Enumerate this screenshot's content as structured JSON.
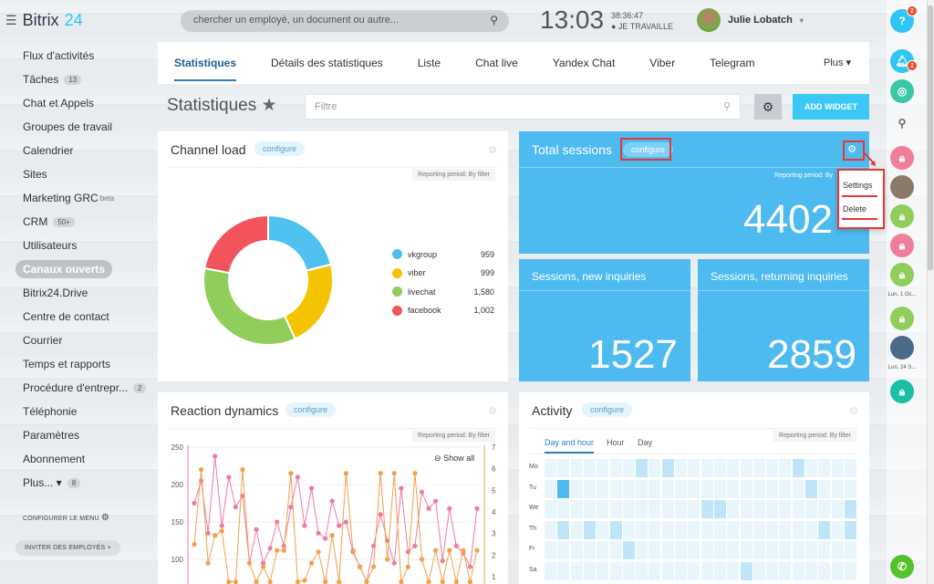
{
  "app": {
    "name": "Bitrix",
    "version": "24"
  },
  "search": {
    "placeholder": "chercher un employé, un document ou autre..."
  },
  "clock": {
    "time": "13:03",
    "seconds": "38:36:47",
    "status": "● JE TRAVAILLE"
  },
  "user": {
    "name": "Julie Lobatch"
  },
  "menu": {
    "items": [
      {
        "label": "Flux d'activités"
      },
      {
        "label": "Tâches",
        "count": "13"
      },
      {
        "label": "Chat et Appels"
      },
      {
        "label": "Groupes de travail"
      },
      {
        "label": "Calendrier"
      },
      {
        "label": "Sites"
      },
      {
        "label": "Marketing GRC",
        "sup": "beta"
      },
      {
        "label": "CRM",
        "count": "50+"
      },
      {
        "label": "Utilisateurs"
      },
      {
        "label": "Canaux ouverts",
        "active": true
      },
      {
        "label": "Bitrix24.Drive"
      },
      {
        "label": "Centre de contact"
      },
      {
        "label": "Courrier"
      },
      {
        "label": "Temps et rapports"
      },
      {
        "label": "Procédure d'entrepr...",
        "count": "2"
      },
      {
        "label": "Téléphonie"
      },
      {
        "label": "Paramètres"
      },
      {
        "label": "Abonnement"
      },
      {
        "label": "Plus... ▾",
        "count": "8"
      }
    ],
    "configure": "CONFIGURER LE MENU",
    "invite": "INVITER DES EMPLOYÉS"
  },
  "tabs": [
    "Statistiques",
    "Détails des statistiques",
    "Liste",
    "Chat live",
    "Yandex Chat",
    "Viber",
    "Telegram"
  ],
  "tabs_more": "Plus ▾",
  "page": {
    "title": "Statistiques",
    "star": "★",
    "filter_placeholder": "Filtre",
    "add_widget": "ADD WIDGET"
  },
  "widgets": {
    "channel_load": {
      "title": "Channel load",
      "configure": "configure",
      "period": "Reporting period: By filter"
    },
    "total_sessions": {
      "title": "Total sessions",
      "configure": "configure",
      "period": "Reporting period: By",
      "value": "4402"
    },
    "new_inquiries": {
      "title": "Sessions, new inquiries",
      "value": "1527"
    },
    "returning": {
      "title": "Sessions, returning inquiries",
      "value": "2859"
    },
    "reaction": {
      "title": "Reaction dynamics",
      "configure": "configure",
      "period": "Reporting period: By filter",
      "show_all": "Show all"
    },
    "activity": {
      "title": "Activity",
      "configure": "configure",
      "period": "Reporting period: By filter",
      "subtabs": [
        "Day and hour",
        "Hour",
        "Day"
      ],
      "days": [
        "Mo",
        "Tu",
        "We",
        "Th",
        "Fr",
        "Sa"
      ]
    }
  },
  "dropdown": {
    "settings": "Settings",
    "delete": "Delete"
  },
  "rightbar": {
    "help_badge": "2",
    "notif_badge": "2",
    "date1": "Lun, 1 Oc...",
    "date2": "Lun, 24 S..."
  },
  "chart_data": [
    {
      "type": "pie",
      "title": "Channel load",
      "categories": [
        "vkgroup",
        "viber",
        "livechat",
        "facebook"
      ],
      "values": [
        959,
        999,
        1580,
        1002
      ],
      "labels": [
        "959",
        "999",
        "1,580",
        "1,002"
      ],
      "colors": [
        "#4fc1ee",
        "#f5c400",
        "#8fce5a",
        "#f2545b"
      ]
    },
    {
      "type": "line",
      "title": "Reaction dynamics",
      "ylim_left": [
        0,
        250
      ],
      "ylim_right": [
        0,
        7
      ],
      "yticks_left": [
        100,
        150,
        200,
        250
      ],
      "yticks_right": [
        1,
        2,
        3,
        4,
        5,
        6,
        7
      ],
      "series": [
        {
          "color": "#f07aa0",
          "values": [
            175,
            205,
            135,
            238,
            145,
            210,
            170,
            185,
            95,
            140,
            95,
            115,
            150,
            118,
            170,
            210,
            145,
            195,
            135,
            128,
            178,
            145,
            150,
            110,
            90,
            70,
            118,
            160,
            125,
            95,
            195,
            110,
            118,
            190,
            168,
            178,
            98,
            168,
            118,
            108,
            90,
            168
          ]
        },
        {
          "color": "#f2a04a",
          "values": [
            120,
            220,
            95,
            132,
            138,
            70,
            70,
            220,
            95,
            70,
            90,
            70,
            112,
            112,
            215,
            70,
            72,
            95,
            110,
            70,
            132,
            70,
            215,
            112,
            90,
            70,
            90,
            215,
            100,
            215,
            70,
            90,
            215,
            100,
            70,
            112,
            70,
            112,
            70,
            112,
            70,
            112
          ]
        }
      ]
    },
    {
      "type": "heatmap",
      "title": "Activity",
      "rows": [
        "Mo",
        "Tu",
        "We",
        "Th",
        "Fr",
        "Sa"
      ]
    }
  ]
}
